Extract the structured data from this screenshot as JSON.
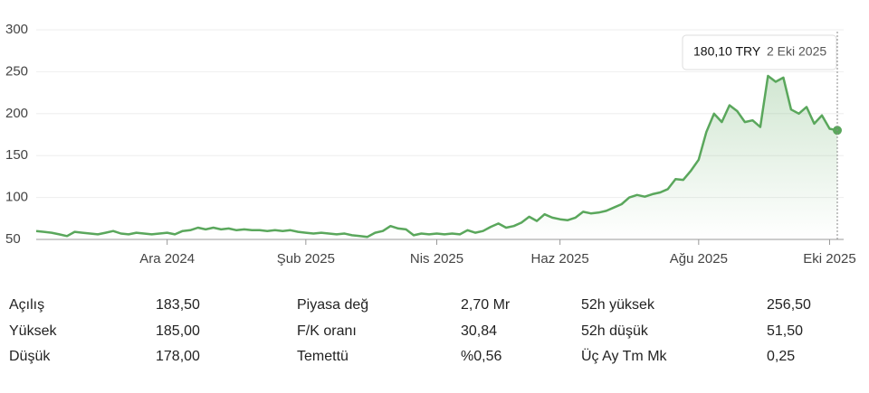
{
  "chart_data": {
    "type": "line",
    "categories": [
      null,
      null,
      null,
      null,
      null,
      null,
      null,
      null,
      null,
      null,
      null,
      null,
      null,
      null,
      null,
      null,
      null,
      "Ara 2024",
      null,
      null,
      null,
      null,
      null,
      null,
      null,
      null,
      null,
      null,
      null,
      null,
      null,
      null,
      null,
      null,
      null,
      "Şub 2025",
      null,
      null,
      null,
      null,
      null,
      null,
      null,
      null,
      null,
      null,
      null,
      null,
      null,
      null,
      null,
      null,
      "Nis 2025",
      null,
      null,
      null,
      null,
      null,
      null,
      null,
      null,
      null,
      null,
      null,
      null,
      null,
      null,
      null,
      "Haz 2025",
      null,
      null,
      null,
      null,
      null,
      null,
      null,
      null,
      null,
      null,
      null,
      null,
      null,
      null,
      null,
      null,
      null,
      "Ağu 2025",
      null,
      null,
      null,
      null,
      null,
      null,
      null,
      null,
      null,
      null,
      null,
      null,
      null,
      null,
      null,
      null,
      "Eki 2025",
      null
    ],
    "series": [
      {
        "color": "#5aa75c",
        "values": [
          60,
          59,
          58,
          56,
          54,
          59,
          58,
          57,
          56,
          58,
          60,
          57,
          56,
          58,
          57,
          56,
          57,
          58,
          56,
          60,
          61,
          64,
          62,
          64,
          62,
          63,
          61,
          62,
          61,
          61,
          60,
          61,
          60,
          61,
          59,
          58,
          57,
          58,
          57,
          56,
          57,
          55,
          54,
          53,
          58,
          60,
          66,
          63,
          62,
          55,
          57,
          56,
          57,
          56,
          57,
          56,
          61,
          58,
          60,
          65,
          69,
          64,
          66,
          70,
          77,
          72,
          80,
          76,
          74,
          73,
          76,
          83,
          81,
          82,
          84,
          88,
          92,
          100,
          103,
          101,
          104,
          106,
          110,
          122,
          121,
          132,
          145,
          178,
          200,
          190,
          210,
          203,
          190,
          192,
          184,
          245,
          238,
          243,
          205,
          200,
          208,
          188,
          198,
          182,
          180.1
        ]
      }
    ],
    "ylim": [
      50,
      300
    ],
    "yticks": [
      50,
      100,
      150,
      200,
      250,
      300
    ],
    "grid": true,
    "tooltip": {
      "label": "180,10 TRY",
      "date": "2 Eki 2025"
    }
  },
  "stats": {
    "rows": [
      [
        [
          "Açılış",
          "183,50"
        ],
        [
          "Piyasa değ",
          "2,70 Mr"
        ],
        [
          "52h yüksek",
          "256,50"
        ]
      ],
      [
        [
          "Yüksek",
          "185,00"
        ],
        [
          "F/K oranı",
          "30,84"
        ],
        [
          "52h düşük",
          "51,50"
        ]
      ],
      [
        [
          "Düşük",
          "178,00"
        ],
        [
          "Temettü",
          "%0,56"
        ],
        [
          "Üç Ay Tm Mk",
          "0,25"
        ]
      ]
    ]
  }
}
